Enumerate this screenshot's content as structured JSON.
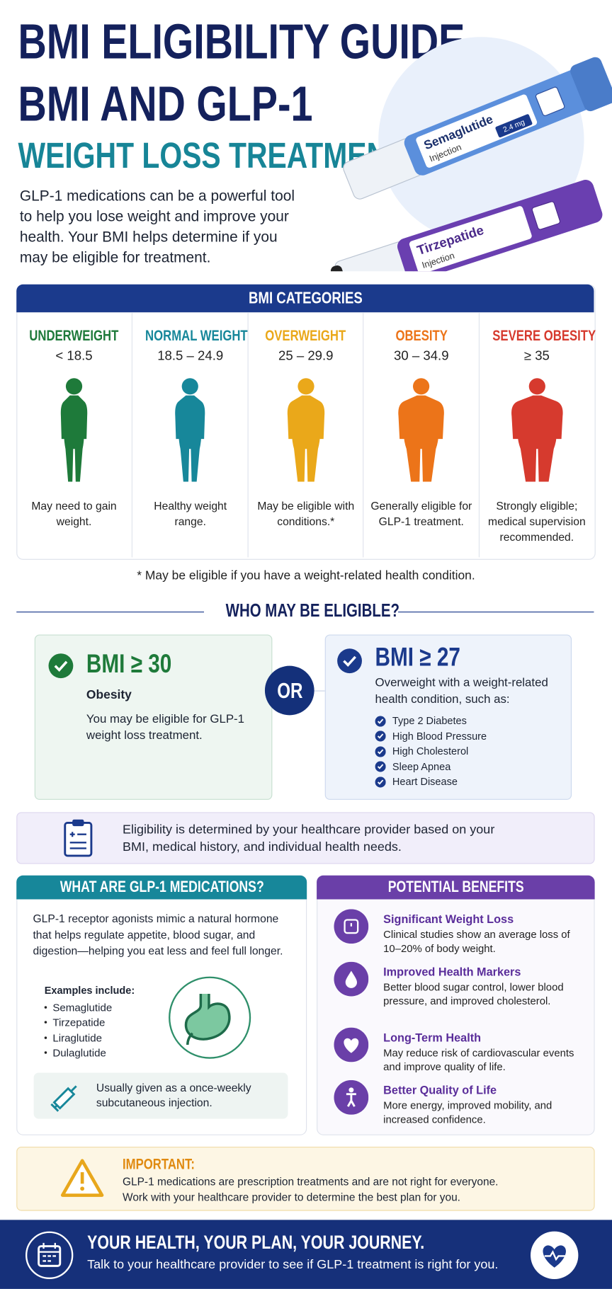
{
  "header": {
    "title_line1": "BMI ELIGIBILITY GUIDE",
    "title_line2": "BMI AND GLP-1",
    "title_line3": "WEIGHT LOSS TREATMENT",
    "intro": "GLP-1 medications can be a powerful tool to help you lose weight and improve your health. Your BMI helps determine if you may be eligible for treatment."
  },
  "pens": [
    {
      "name": "Semaglutide",
      "form": "Injection",
      "dose": "2.4 mg"
    },
    {
      "name": "Tirzepatide",
      "form": "Injection"
    }
  ],
  "bmi_categories": {
    "title": "BMI CATEGORIES",
    "items": [
      {
        "name": "UNDERWEIGHT",
        "range": "< 18.5",
        "description": "May need to gain weight.",
        "color": "#1e7a3a"
      },
      {
        "name": "NORMAL WEIGHT",
        "range": "18.5 – 24.9",
        "description": "Healthy weight range.",
        "color": "#17879a"
      },
      {
        "name": "OVERWEIGHT",
        "range": "25 – 29.9",
        "description": "May be eligible with conditions.*",
        "color": "#eaa81a"
      },
      {
        "name": "OBESITY",
        "range": "30 – 34.9",
        "description": "Generally eligible for GLP-1 treatment.",
        "color": "#ec7419"
      },
      {
        "name": "SEVERE OBESITY",
        "range": "≥ 35",
        "description": "Strongly eligible; medical supervision recommended.",
        "color": "#d63a2e"
      }
    ],
    "footnote": "* May be eligible if you have a weight-related health condition."
  },
  "eligibility": {
    "title": "WHO MAY BE ELIGIBLE?",
    "option1": {
      "heading": "BMI ≥ 30",
      "label": "Obesity",
      "text": "You may be eligible for GLP-1 weight loss treatment."
    },
    "separator": "OR",
    "option2": {
      "heading": "BMI ≥ 27",
      "text": "Overweight with a weight-related health condition, such as:",
      "conditions": [
        "Type 2 Diabetes",
        "High Blood Pressure",
        "High Cholesterol",
        "Sleep Apnea",
        "Heart Disease"
      ]
    },
    "note": "Eligibility is determined by your healthcare provider based on your BMI, medical history, and individual health needs."
  },
  "glp1": {
    "title": "WHAT ARE GLP-1 MEDICATIONS?",
    "description": "GLP-1 receptor agonists mimic a natural hormone that helps regulate appetite, blood sugar, and digestion—helping you eat less and feel full longer.",
    "examples_title": "Examples include:",
    "examples": [
      "Semaglutide",
      "Tirzepatide",
      "Liraglutide",
      "Dulaglutide"
    ],
    "administration": "Usually given as a once-weekly subcutaneous injection."
  },
  "benefits": {
    "title": "POTENTIAL BENEFITS",
    "items": [
      {
        "title": "Significant Weight Loss",
        "text": "Clinical studies show an average loss of 10–20% of body weight."
      },
      {
        "title": "Improved Health Markers",
        "text": "Better blood sugar control, lower blood pressure, and improved cholesterol."
      },
      {
        "title": "Long-Term Health",
        "text": "May reduce risk of cardiovascular events and improve quality of life."
      },
      {
        "title": "Better Quality of Life",
        "text": "More energy, improved mobility, and increased confidence."
      }
    ]
  },
  "important": {
    "label": "IMPORTANT:",
    "text": "GLP-1 medications are prescription treatments and are not right for everyone. Work with your healthcare provider to determine the best plan for you."
  },
  "footer": {
    "title": "YOUR HEALTH, YOUR PLAN, YOUR JOURNEY.",
    "text": "Talk to your healthcare provider to see if GLP-1 treatment is right for you."
  }
}
